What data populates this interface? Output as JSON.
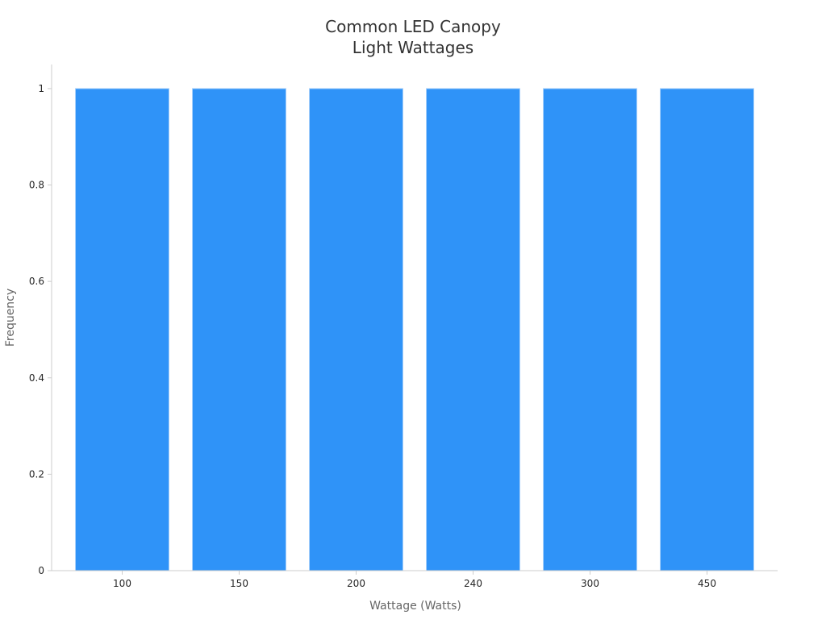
{
  "chart_data": {
    "type": "bar",
    "title_lines": [
      "Common LED Canopy",
      "Light Wattages"
    ],
    "xlabel": "Wattage (Watts)",
    "ylabel": "Frequency",
    "categories": [
      "100",
      "150",
      "200",
      "240",
      "300",
      "450"
    ],
    "values": [
      1,
      1,
      1,
      1,
      1,
      1
    ],
    "ylim": [
      0,
      1.05
    ],
    "yticks": [
      "0",
      "0.2",
      "0.4",
      "0.6",
      "0.8",
      "1"
    ],
    "grid": false,
    "legend": "none",
    "colors": {
      "bar": "#2f93f8",
      "bar_edge": "#a9d1fb",
      "axis": "#cccccc",
      "title": "#333333",
      "tick_text": "#262626",
      "axis_label": "#666666"
    }
  }
}
